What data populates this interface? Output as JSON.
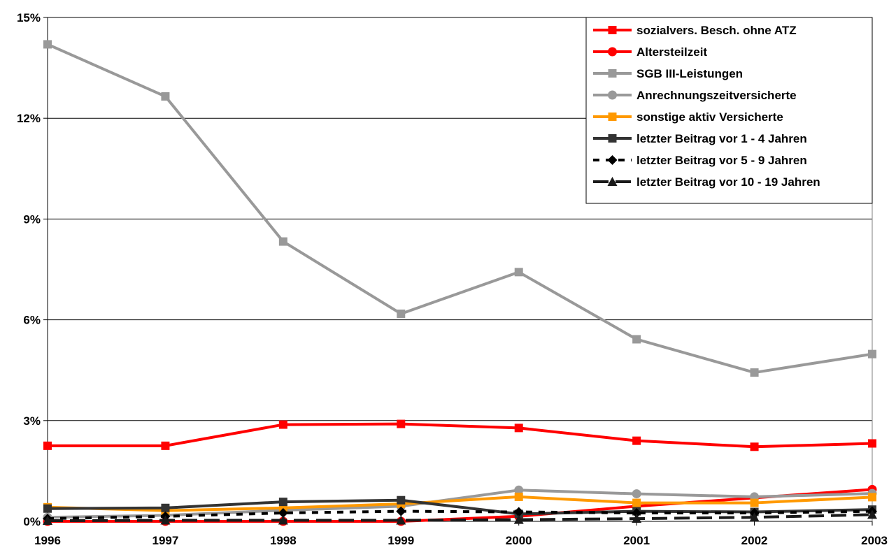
{
  "chart_data": {
    "type": "line",
    "title": "",
    "xlabel": "",
    "ylabel": "",
    "categories": [
      "1996",
      "1997",
      "1998",
      "1999",
      "2000",
      "2001",
      "2002",
      "2003"
    ],
    "ylim": [
      0,
      15
    ],
    "yticks": [
      0,
      3,
      6,
      9,
      12,
      15
    ],
    "ytick_labels": [
      "0%",
      "3%",
      "6%",
      "9%",
      "12%",
      "15%"
    ],
    "grid": "horizontal",
    "legend_position": "top-right",
    "series": [
      {
        "name": "sozialvers. Besch. ohne ATZ",
        "color": "#ff0000",
        "marker": "square",
        "dash": "solid",
        "values": [
          2.25,
          2.25,
          2.88,
          2.9,
          2.78,
          2.4,
          2.22,
          2.32
        ]
      },
      {
        "name": "Altersteilzeit",
        "color": "#ff0000",
        "marker": "circle",
        "dash": "solid",
        "values": [
          0.0,
          0.0,
          0.0,
          0.0,
          0.15,
          0.45,
          0.7,
          0.95
        ]
      },
      {
        "name": "SGB III-Leistungen",
        "color": "#999999",
        "marker": "square",
        "dash": "solid",
        "values": [
          14.2,
          12.65,
          8.33,
          6.18,
          7.42,
          5.42,
          4.43,
          4.98
        ]
      },
      {
        "name": "Anrechnungszeitversicherte",
        "color": "#999999",
        "marker": "circle",
        "dash": "solid",
        "values": [
          0.12,
          0.18,
          0.33,
          0.45,
          0.93,
          0.82,
          0.73,
          0.83
        ]
      },
      {
        "name": "sonstige aktiv Versicherte",
        "color": "#ff9900",
        "marker": "square",
        "dash": "solid",
        "values": [
          0.42,
          0.32,
          0.4,
          0.52,
          0.73,
          0.55,
          0.55,
          0.72
        ]
      },
      {
        "name": "letzter Beitrag vor 1 - 4 Jahren",
        "color": "#333333",
        "marker": "square",
        "dash": "solid",
        "values": [
          0.38,
          0.4,
          0.58,
          0.63,
          0.22,
          0.3,
          0.28,
          0.35
        ]
      },
      {
        "name": "letzter Beitrag vor 5 - 9 Jahren",
        "color": "#000000",
        "marker": "diamond",
        "dash": "dashed",
        "values": [
          0.08,
          0.15,
          0.25,
          0.3,
          0.28,
          0.25,
          0.25,
          0.3
        ]
      },
      {
        "name": "letzter Beitrag vor 10 - 19 Jahren",
        "color": "#1a1a1a",
        "marker": "triangle",
        "dash": "longdash",
        "values": [
          0.02,
          0.03,
          0.03,
          0.03,
          0.05,
          0.08,
          0.12,
          0.2
        ]
      }
    ]
  }
}
